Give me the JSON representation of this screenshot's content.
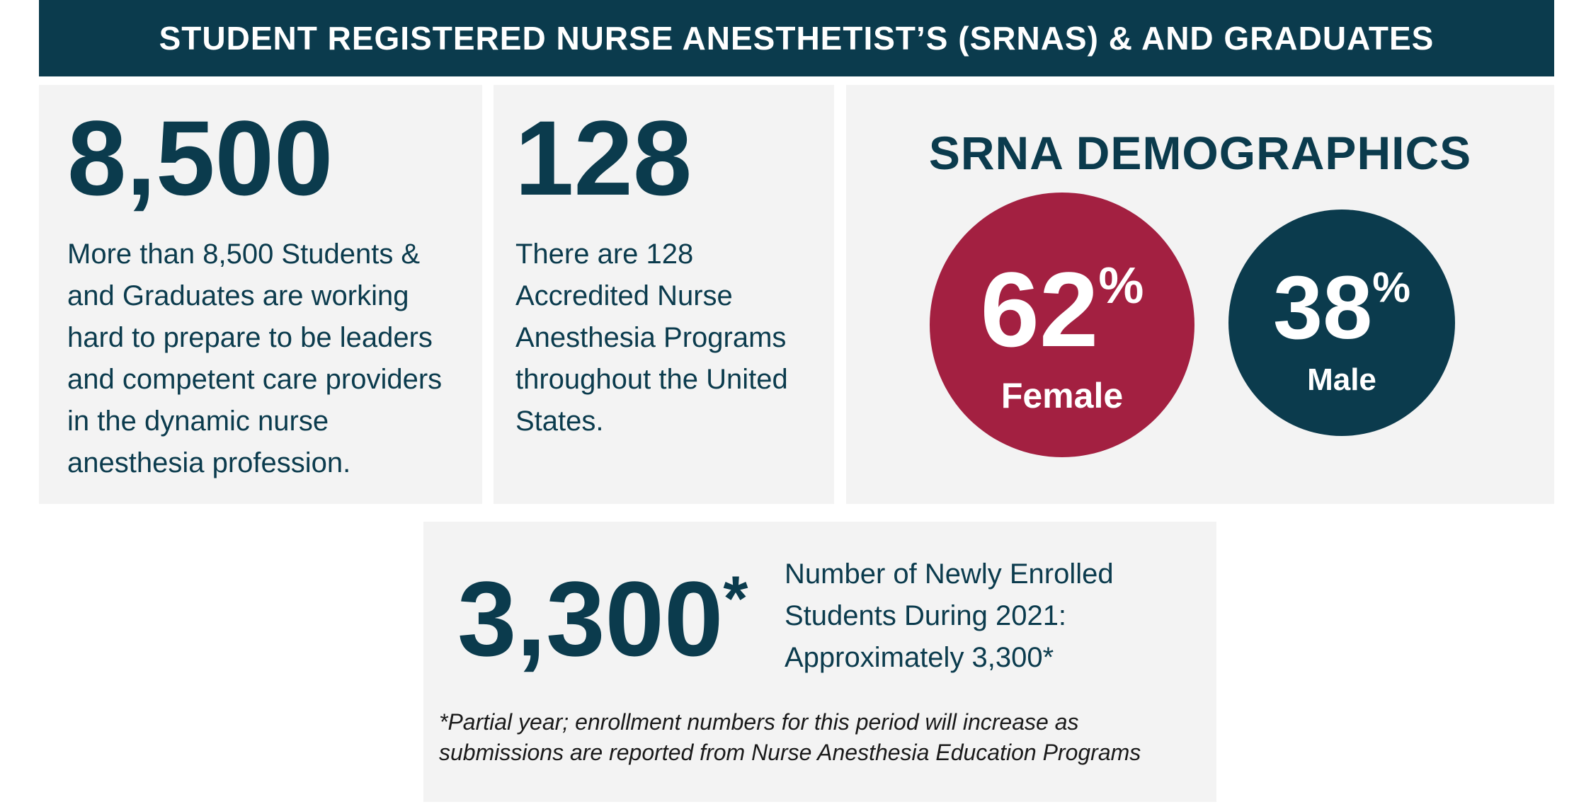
{
  "header": {
    "title": "STUDENT REGISTERED NURSE ANESTHETIST’S (SRNAS) & AND GRADUATES"
  },
  "students": {
    "number": "8,500",
    "description": "More than 8,500 Students & and Graduates are working hard to prepare to be leaders and competent care providers in the dynamic nurse anesthesia profession."
  },
  "programs": {
    "number": "128",
    "description": "There are 128 Accredited Nurse Anesthesia Programs throughout the United States."
  },
  "demographics": {
    "title": "SRNA DEMOGRAPHICS",
    "female": {
      "value": "62",
      "symbol": "%",
      "label": "Female",
      "color": "#a32041"
    },
    "male": {
      "value": "38",
      "symbol": "%",
      "label": "Male",
      "color": "#0b3b4d"
    }
  },
  "enrollment": {
    "number": "3,300",
    "asterisk": "*",
    "description": "Number of Newly Enrolled Students During 2021: Approximately 3,300*",
    "footnote": "*Partial year; enrollment numbers for this period will increase as submissions are reported from Nurse Anesthesia Education Programs"
  },
  "colors": {
    "primary": "#0b3b4d",
    "accent": "#a32041",
    "card_background": "#f3f3f3"
  }
}
